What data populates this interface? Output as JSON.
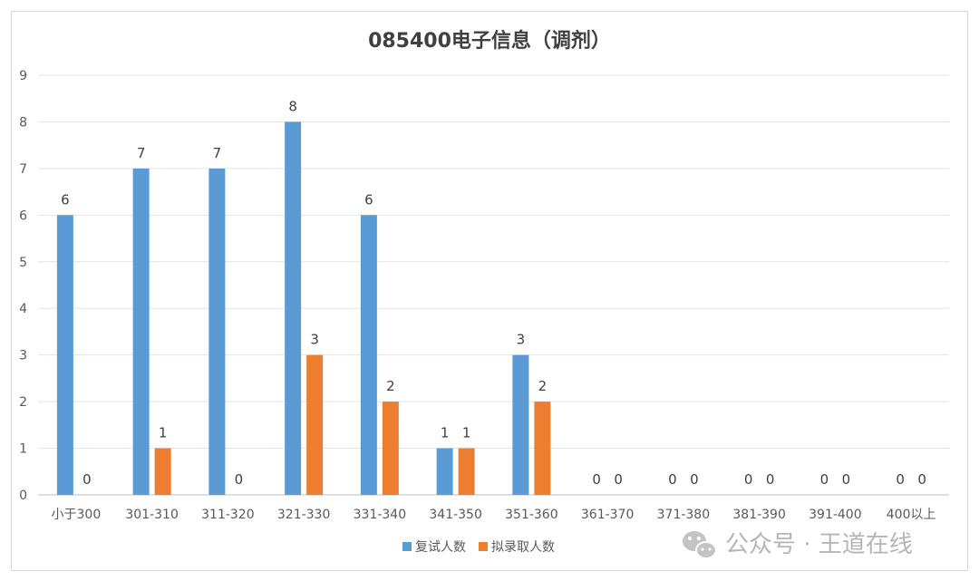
{
  "chart_data": {
    "type": "bar",
    "title": "085400电子信息（调剂）",
    "categories": [
      "小于300",
      "301-310",
      "311-320",
      "321-330",
      "331-340",
      "341-350",
      "351-360",
      "361-370",
      "371-380",
      "381-390",
      "391-400",
      "400以上"
    ],
    "series": [
      {
        "name": "复试人数",
        "color": "#5b9bd5",
        "values": [
          6,
          7,
          7,
          8,
          6,
          1,
          3,
          0,
          0,
          0,
          0,
          0
        ]
      },
      {
        "name": "拟录取人数",
        "color": "#ed7d31",
        "values": [
          0,
          1,
          0,
          3,
          2,
          1,
          2,
          0,
          0,
          0,
          0,
          0
        ]
      }
    ],
    "ylim": [
      0,
      9
    ],
    "yticks": [
      0,
      1,
      2,
      3,
      4,
      5,
      6,
      7,
      8,
      9
    ],
    "grid": true,
    "legend": "bottom",
    "data_labels": true
  },
  "watermark": {
    "text": "公众号 · 王道在线",
    "icon": "wechat-icon"
  }
}
